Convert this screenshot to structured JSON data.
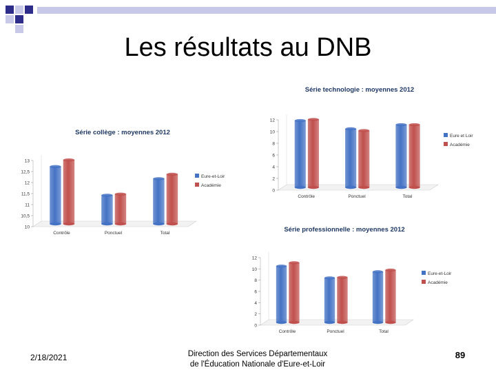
{
  "slide": {
    "title": "Les résultats au DNB",
    "footer_date": "2/18/2021",
    "footer_org_line1": "Direction des Services Départementaux",
    "footer_org_line2": "de l'Éducation Nationale d'Eure-et-Loir",
    "page_number": "89"
  },
  "colors": {
    "series1": "#4472c4",
    "series2": "#c0504d",
    "title_text": "#1f3864"
  },
  "chart_data": [
    {
      "id": "college",
      "type": "bar",
      "title": "Série collège : moyennes 2012",
      "categories": [
        "Contrôle",
        "Ponctuel",
        "Total"
      ],
      "series": [
        {
          "name": "Eure-et-Loir",
          "values": [
            12.6,
            11.3,
            12.05
          ]
        },
        {
          "name": "Académie",
          "values": [
            12.9,
            11.35,
            12.25
          ]
        }
      ],
      "ylim": [
        10,
        13
      ],
      "yticks": [
        "10",
        "10,5",
        "11",
        "11,5",
        "12",
        "12,5",
        "13"
      ],
      "legend": "right",
      "grid": false
    },
    {
      "id": "techno",
      "type": "bar",
      "title": "Série technologie : moyennes 2012",
      "categories": [
        "Contrôle",
        "Ponctuel",
        "Total"
      ],
      "series": [
        {
          "name": "Eure et Loir",
          "values": [
            11.4,
            10.0,
            10.7
          ]
        },
        {
          "name": "Académie",
          "values": [
            11.6,
            9.7,
            10.7
          ]
        }
      ],
      "ylim": [
        0,
        12
      ],
      "yticks": [
        "0",
        "2",
        "4",
        "6",
        "8",
        "10",
        "12"
      ],
      "legend": "right",
      "grid": false
    },
    {
      "id": "pro",
      "type": "bar",
      "title": "Série professionnelle : moyennes 2012",
      "categories": [
        "Contrôle",
        "Ponctuel",
        "Total"
      ],
      "series": [
        {
          "name": "Eure-et-Loir",
          "values": [
            10.0,
            7.9,
            9.0
          ]
        },
        {
          "name": "Académie",
          "values": [
            10.6,
            8.0,
            9.3
          ]
        }
      ],
      "ylim": [
        0,
        12
      ],
      "yticks": [
        "0",
        "2",
        "4",
        "6",
        "8",
        "10",
        "12"
      ],
      "legend": "right",
      "grid": false
    }
  ]
}
